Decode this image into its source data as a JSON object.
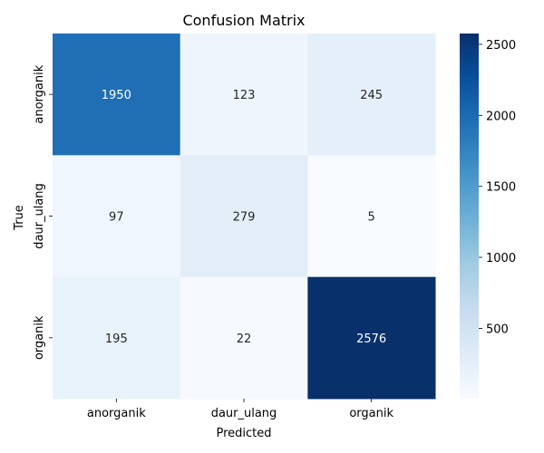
{
  "chart_data": {
    "type": "heatmap",
    "title": "Confusion Matrix",
    "xlabel": "Predicted",
    "ylabel": "True",
    "x_categories": [
      "anorganik",
      "daur_ulang",
      "organik"
    ],
    "y_categories": [
      "anorganik",
      "daur_ulang",
      "organik"
    ],
    "values": [
      [
        1950,
        123,
        245
      ],
      [
        97,
        279,
        5
      ],
      [
        195,
        22,
        2576
      ]
    ],
    "colormap": "Blues",
    "colorbar": {
      "min": 5,
      "max": 2576,
      "ticks": [
        500,
        1000,
        1500,
        2000,
        2500
      ]
    }
  }
}
